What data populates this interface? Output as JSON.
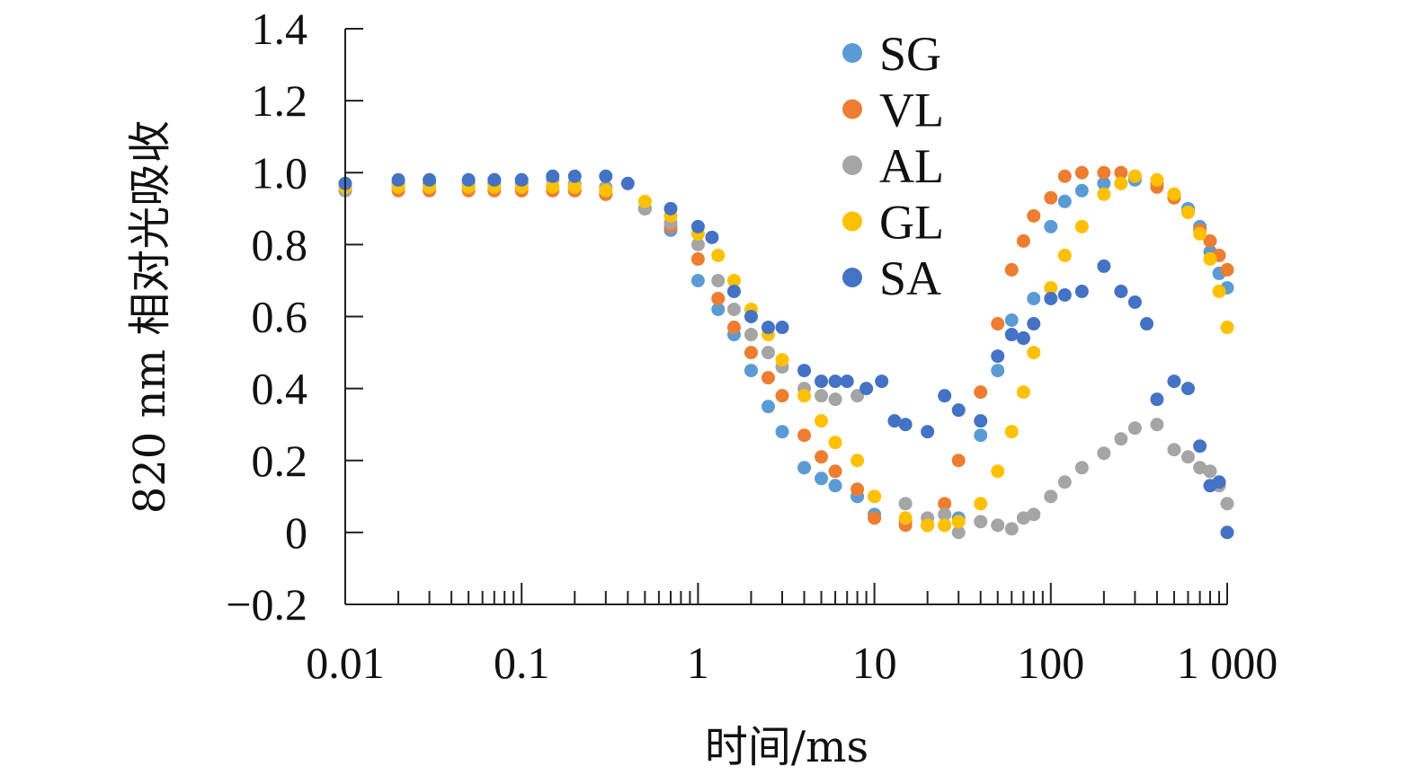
{
  "chart_data": {
    "type": "scatter",
    "ylabel": "820 nm 相对光吸收",
    "xlabel": "时间/ms",
    "x_scale": "log",
    "xlim": [
      0.01,
      1000
    ],
    "ylim": [
      -0.2,
      1.4
    ],
    "x_tick_labels": [
      "0.01",
      "0.1",
      "1",
      "10",
      "100",
      "1 000"
    ],
    "y_tick_labels": [
      "−0.2",
      "0",
      "0.2",
      "0.4",
      "0.6",
      "0.8",
      "1.0",
      "1.2",
      "1.4"
    ],
    "legend_position": "top-center",
    "grid": false,
    "series": [
      {
        "name": "SG",
        "color": "#5B9BD5",
        "points": [
          [
            0.01,
            0.96
          ],
          [
            0.02,
            0.97
          ],
          [
            0.03,
            0.97
          ],
          [
            0.05,
            0.97
          ],
          [
            0.07,
            0.97
          ],
          [
            0.1,
            0.97
          ],
          [
            0.15,
            0.96
          ],
          [
            0.2,
            0.95
          ],
          [
            0.3,
            0.94
          ],
          [
            0.5,
            0.9
          ],
          [
            0.7,
            0.84
          ],
          [
            1.0,
            0.7
          ],
          [
            1.3,
            0.62
          ],
          [
            1.6,
            0.55
          ],
          [
            2.0,
            0.45
          ],
          [
            2.5,
            0.35
          ],
          [
            3.0,
            0.28
          ],
          [
            4.0,
            0.18
          ],
          [
            5.0,
            0.15
          ],
          [
            6.0,
            0.13
          ],
          [
            8.0,
            0.1
          ],
          [
            10,
            0.05
          ],
          [
            15,
            0.03
          ],
          [
            20,
            0.02
          ],
          [
            25,
            0.02
          ],
          [
            30,
            0.04
          ],
          [
            40,
            0.27
          ],
          [
            50,
            0.45
          ],
          [
            60,
            0.59
          ],
          [
            70,
            0.54
          ],
          [
            80,
            0.65
          ],
          [
            100,
            0.85
          ],
          [
            120,
            0.92
          ],
          [
            150,
            0.95
          ],
          [
            200,
            0.97
          ],
          [
            250,
            0.97
          ],
          [
            300,
            0.98
          ],
          [
            400,
            0.97
          ],
          [
            500,
            0.94
          ],
          [
            600,
            0.9
          ],
          [
            700,
            0.85
          ],
          [
            800,
            0.78
          ],
          [
            900,
            0.72
          ],
          [
            1000,
            0.68
          ]
        ]
      },
      {
        "name": "VL",
        "color": "#ED7D31",
        "points": [
          [
            0.01,
            0.95
          ],
          [
            0.02,
            0.95
          ],
          [
            0.03,
            0.95
          ],
          [
            0.05,
            0.95
          ],
          [
            0.07,
            0.95
          ],
          [
            0.1,
            0.95
          ],
          [
            0.15,
            0.95
          ],
          [
            0.2,
            0.95
          ],
          [
            0.3,
            0.94
          ],
          [
            0.5,
            0.9
          ],
          [
            0.7,
            0.85
          ],
          [
            1.0,
            0.76
          ],
          [
            1.3,
            0.65
          ],
          [
            1.6,
            0.57
          ],
          [
            2.0,
            0.5
          ],
          [
            2.5,
            0.43
          ],
          [
            3.0,
            0.38
          ],
          [
            4.0,
            0.27
          ],
          [
            5.0,
            0.21
          ],
          [
            6.0,
            0.17
          ],
          [
            8.0,
            0.12
          ],
          [
            10,
            0.04
          ],
          [
            15,
            0.02
          ],
          [
            20,
            0.02
          ],
          [
            25,
            0.08
          ],
          [
            30,
            0.2
          ],
          [
            40,
            0.39
          ],
          [
            50,
            0.58
          ],
          [
            60,
            0.73
          ],
          [
            70,
            0.81
          ],
          [
            80,
            0.88
          ],
          [
            100,
            0.93
          ],
          [
            120,
            0.99
          ],
          [
            150,
            1.0
          ],
          [
            200,
            1.0
          ],
          [
            250,
            1.0
          ],
          [
            300,
            0.99
          ],
          [
            400,
            0.96
          ],
          [
            500,
            0.93
          ],
          [
            600,
            0.89
          ],
          [
            700,
            0.84
          ],
          [
            800,
            0.81
          ],
          [
            900,
            0.77
          ],
          [
            1000,
            0.73
          ]
        ]
      },
      {
        "name": "AL",
        "color": "#A5A5A5",
        "points": [
          [
            0.01,
            0.95
          ],
          [
            0.02,
            0.96
          ],
          [
            0.03,
            0.96
          ],
          [
            0.05,
            0.97
          ],
          [
            0.07,
            0.98
          ],
          [
            0.1,
            0.98
          ],
          [
            0.15,
            0.98
          ],
          [
            0.2,
            0.97
          ],
          [
            0.3,
            0.96
          ],
          [
            0.5,
            0.9
          ],
          [
            0.7,
            0.86
          ],
          [
            1.0,
            0.8
          ],
          [
            1.3,
            0.7
          ],
          [
            1.6,
            0.62
          ],
          [
            2.0,
            0.55
          ],
          [
            2.5,
            0.5
          ],
          [
            3.0,
            0.46
          ],
          [
            4.0,
            0.4
          ],
          [
            5.0,
            0.38
          ],
          [
            6.0,
            0.37
          ],
          [
            8.0,
            0.38
          ],
          [
            10,
            0.1
          ],
          [
            15,
            0.08
          ],
          [
            20,
            0.04
          ],
          [
            25,
            0.05
          ],
          [
            30,
            0.0
          ],
          [
            40,
            0.03
          ],
          [
            50,
            0.02
          ],
          [
            60,
            0.01
          ],
          [
            70,
            0.04
          ],
          [
            80,
            0.05
          ],
          [
            100,
            0.1
          ],
          [
            120,
            0.14
          ],
          [
            150,
            0.18
          ],
          [
            200,
            0.22
          ],
          [
            250,
            0.26
          ],
          [
            300,
            0.29
          ],
          [
            400,
            0.3
          ],
          [
            500,
            0.23
          ],
          [
            600,
            0.21
          ],
          [
            700,
            0.18
          ],
          [
            800,
            0.17
          ],
          [
            900,
            0.13
          ],
          [
            1000,
            0.08
          ]
        ]
      },
      {
        "name": "GL",
        "color": "#FFC000",
        "points": [
          [
            0.01,
            0.96
          ],
          [
            0.02,
            0.96
          ],
          [
            0.03,
            0.96
          ],
          [
            0.05,
            0.96
          ],
          [
            0.07,
            0.96
          ],
          [
            0.1,
            0.96
          ],
          [
            0.15,
            0.96
          ],
          [
            0.2,
            0.96
          ],
          [
            0.3,
            0.95
          ],
          [
            0.5,
            0.92
          ],
          [
            0.7,
            0.88
          ],
          [
            1.0,
            0.83
          ],
          [
            1.3,
            0.77
          ],
          [
            1.6,
            0.7
          ],
          [
            2.0,
            0.62
          ],
          [
            2.5,
            0.55
          ],
          [
            3.0,
            0.48
          ],
          [
            4.0,
            0.38
          ],
          [
            5.0,
            0.31
          ],
          [
            6.0,
            0.25
          ],
          [
            8.0,
            0.2
          ],
          [
            10,
            0.1
          ],
          [
            15,
            0.04
          ],
          [
            20,
            0.02
          ],
          [
            25,
            0.02
          ],
          [
            30,
            0.03
          ],
          [
            40,
            0.08
          ],
          [
            50,
            0.17
          ],
          [
            60,
            0.28
          ],
          [
            70,
            0.39
          ],
          [
            80,
            0.5
          ],
          [
            100,
            0.68
          ],
          [
            120,
            0.77
          ],
          [
            150,
            0.85
          ],
          [
            200,
            0.94
          ],
          [
            250,
            0.97
          ],
          [
            300,
            0.99
          ],
          [
            400,
            0.98
          ],
          [
            500,
            0.94
          ],
          [
            600,
            0.89
          ],
          [
            700,
            0.83
          ],
          [
            800,
            0.76
          ],
          [
            900,
            0.67
          ],
          [
            1000,
            0.57
          ]
        ]
      },
      {
        "name": "SA",
        "color": "#4472C4",
        "points": [
          [
            0.01,
            0.97
          ],
          [
            0.02,
            0.98
          ],
          [
            0.03,
            0.98
          ],
          [
            0.05,
            0.98
          ],
          [
            0.07,
            0.98
          ],
          [
            0.1,
            0.98
          ],
          [
            0.15,
            0.99
          ],
          [
            0.2,
            0.99
          ],
          [
            0.3,
            0.99
          ],
          [
            0.4,
            0.97
          ],
          [
            0.7,
            0.9
          ],
          [
            1.0,
            0.85
          ],
          [
            1.2,
            0.82
          ],
          [
            1.6,
            0.67
          ],
          [
            2.0,
            0.6
          ],
          [
            2.5,
            0.57
          ],
          [
            3.0,
            0.57
          ],
          [
            4.0,
            0.45
          ],
          [
            5.0,
            0.42
          ],
          [
            6.0,
            0.42
          ],
          [
            7.0,
            0.42
          ],
          [
            9.0,
            0.4
          ],
          [
            11,
            0.42
          ],
          [
            13,
            0.31
          ],
          [
            15,
            0.3
          ],
          [
            20,
            0.28
          ],
          [
            25,
            0.38
          ],
          [
            30,
            0.34
          ],
          [
            40,
            0.31
          ],
          [
            50,
            0.49
          ],
          [
            60,
            0.55
          ],
          [
            70,
            0.54
          ],
          [
            80,
            0.58
          ],
          [
            100,
            0.65
          ],
          [
            120,
            0.66
          ],
          [
            150,
            0.67
          ],
          [
            200,
            0.74
          ],
          [
            250,
            0.67
          ],
          [
            300,
            0.64
          ],
          [
            350,
            0.58
          ],
          [
            400,
            0.37
          ],
          [
            500,
            0.42
          ],
          [
            600,
            0.4
          ],
          [
            700,
            0.24
          ],
          [
            800,
            0.13
          ],
          [
            900,
            0.14
          ],
          [
            1000,
            0.0
          ]
        ]
      }
    ]
  }
}
